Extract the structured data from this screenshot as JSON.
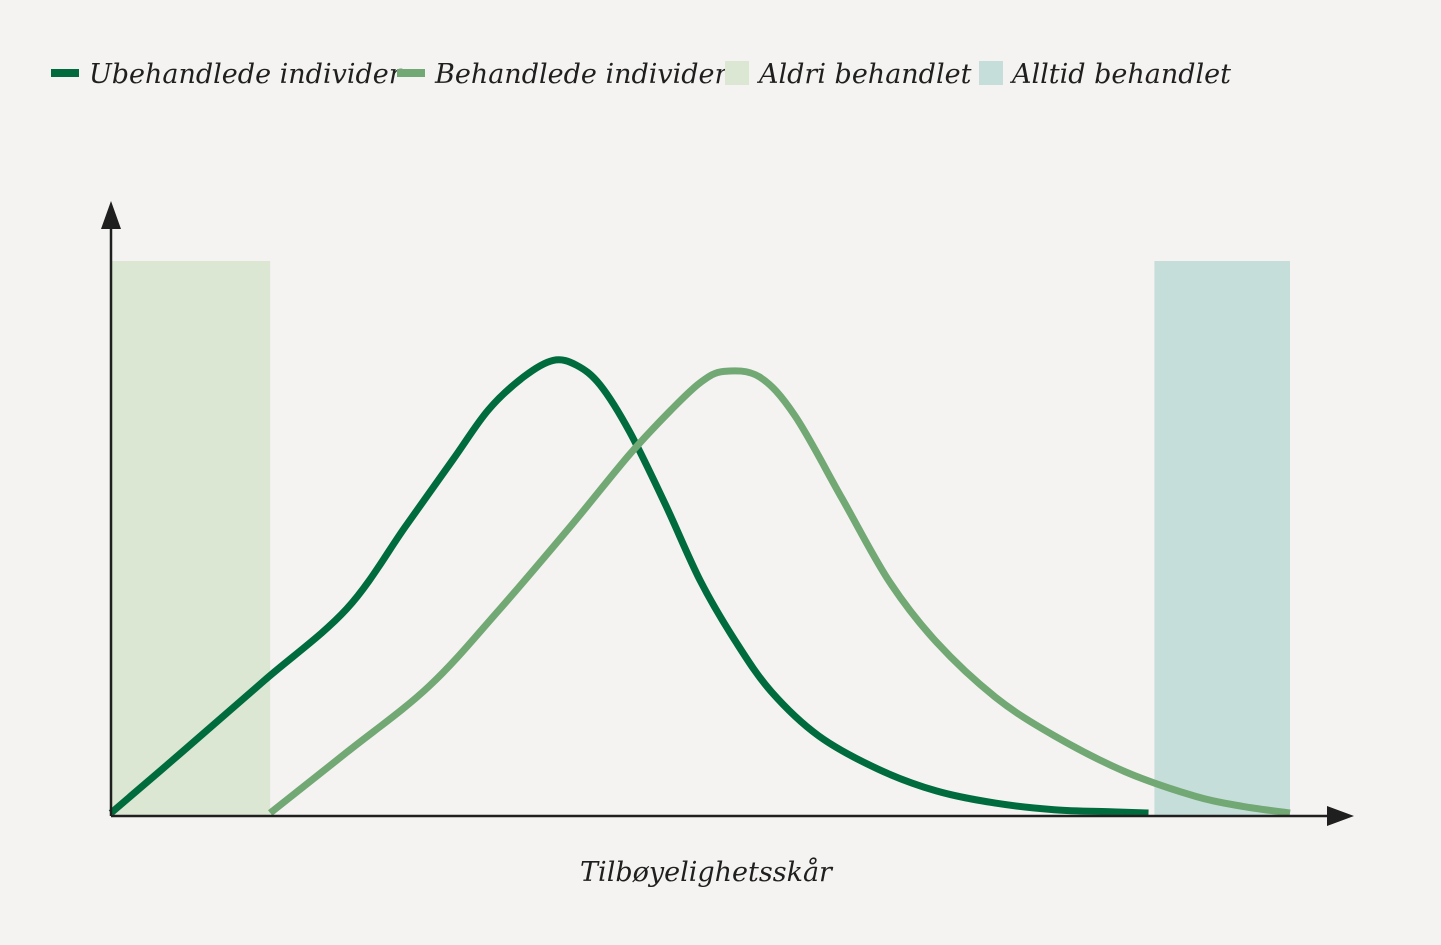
{
  "chart_data": {
    "type": "line",
    "title": "",
    "xlabel": "Tilbøyelighetsskår",
    "ylabel": "",
    "xlim": [
      0,
      1
    ],
    "ylim": [
      0,
      1
    ],
    "grid": false,
    "legend_position": "top-left",
    "legend": [
      {
        "label": "Ubehandlede individer",
        "kind": "line",
        "color": "#006b3c"
      },
      {
        "label": "Behandlede individer",
        "kind": "line",
        "color": "#72a874"
      },
      {
        "label": "Aldri behandlet",
        "kind": "region",
        "color": "#dbe6d3"
      },
      {
        "label": "Alltid behandlet",
        "kind": "region",
        "color": "#c5ded9"
      }
    ],
    "series": [
      {
        "name": "Ubehandlede individer",
        "color": "#006b3c",
        "x": [
          0.0,
          0.06,
          0.13,
          0.2,
          0.25,
          0.29,
          0.32,
          0.35,
          0.375,
          0.395,
          0.415,
          0.44,
          0.47,
          0.5,
          0.53,
          0.56,
          0.6,
          0.65,
          0.7,
          0.75,
          0.8,
          0.85,
          0.88
        ],
        "y": [
          0.0,
          0.11,
          0.24,
          0.37,
          0.52,
          0.64,
          0.73,
          0.79,
          0.82,
          0.811,
          0.775,
          0.69,
          0.56,
          0.42,
          0.31,
          0.22,
          0.14,
          0.08,
          0.04,
          0.018,
          0.006,
          0.002,
          0.0
        ]
      },
      {
        "name": "Behandlede individer",
        "color": "#72a874",
        "x": [
          0.135,
          0.2,
          0.27,
          0.33,
          0.39,
          0.44,
          0.475,
          0.5,
          0.52,
          0.55,
          0.58,
          0.62,
          0.66,
          0.7,
          0.75,
          0.8,
          0.86,
          0.92,
          0.96,
          1.0
        ],
        "y": [
          0.0,
          0.11,
          0.23,
          0.37,
          0.52,
          0.65,
          0.73,
          0.78,
          0.8,
          0.79,
          0.72,
          0.57,
          0.42,
          0.31,
          0.21,
          0.14,
          0.075,
          0.03,
          0.012,
          0.0
        ]
      }
    ],
    "regions": [
      {
        "name": "Aldri behandlet",
        "x0": 0.0,
        "x1": 0.135,
        "y0": 0.0,
        "y1": 1.0,
        "color": "#dbe6d3"
      },
      {
        "name": "Alltid behandlet",
        "x0": 0.885,
        "x1": 1.0,
        "y0": 0.0,
        "y1": 1.0,
        "color": "#c5ded9"
      }
    ]
  }
}
